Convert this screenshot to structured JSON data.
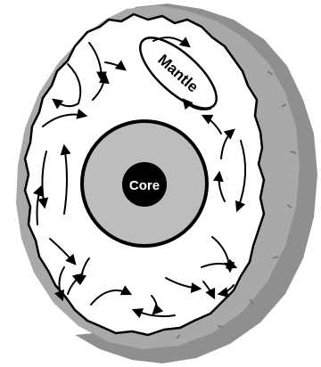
{
  "diagram": {
    "core_label": "Core",
    "mantle_label": "Mantle",
    "colors": {
      "outer_shell": "#a9a9a9",
      "shell_shadow": "#8f8f8f",
      "mantle_fill": "#ffffff",
      "outer_core_fill": "#bdbdbd",
      "inner_core_fill": "#000000",
      "line": "#000000"
    }
  }
}
